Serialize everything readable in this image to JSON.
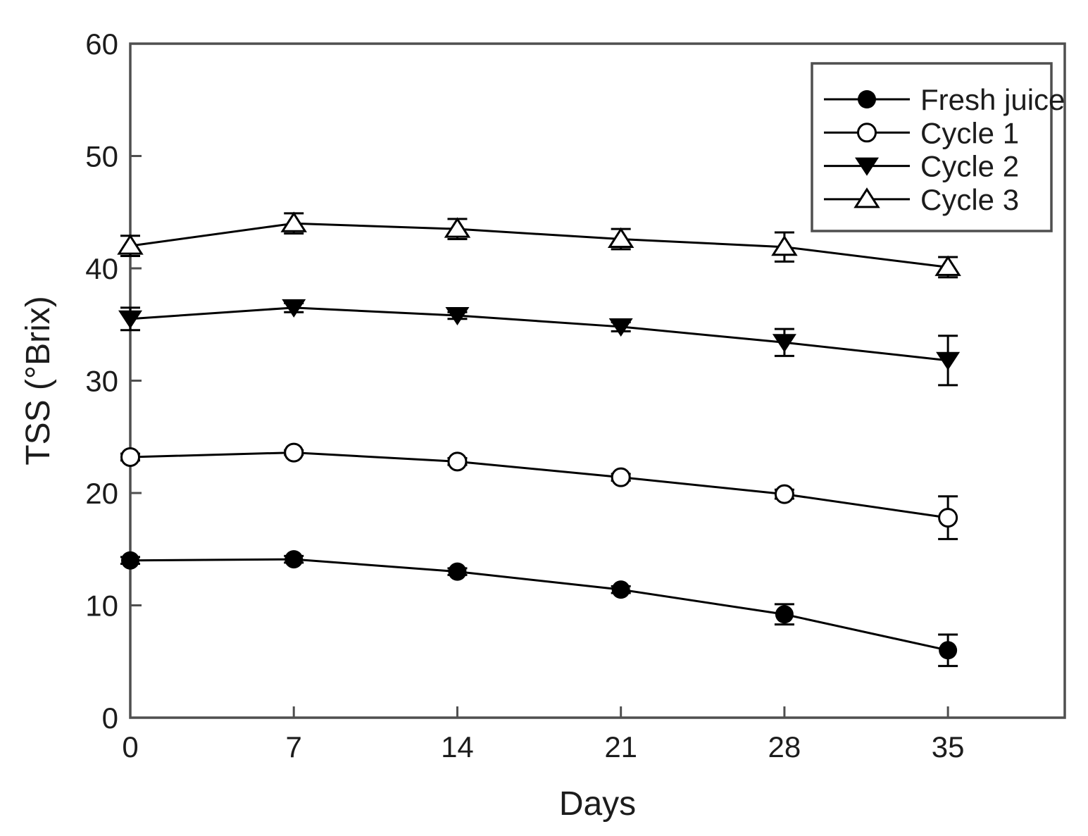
{
  "figure": {
    "background": "#ffffff",
    "description": "Line chart of TSS (°Brix) versus storage days for fresh juice and three concentration cycles, with error bars"
  },
  "chart_data": {
    "type": "line",
    "title": "",
    "xlabel": "Days",
    "ylabel": "TSS (°Brix)",
    "x": [
      0,
      7,
      14,
      21,
      28,
      35
    ],
    "xlim": [
      0,
      40
    ],
    "ylim": [
      0,
      60
    ],
    "x_ticks": [
      0,
      7,
      14,
      21,
      28,
      35
    ],
    "y_ticks": [
      0,
      10,
      20,
      30,
      40,
      50,
      60
    ],
    "grid": false,
    "legend_position": "top-right",
    "series": [
      {
        "name": "Fresh juice",
        "marker": "circle-filled",
        "values": [
          14.0,
          14.1,
          13.0,
          11.4,
          9.2,
          6.0
        ],
        "errors": [
          0.3,
          0.3,
          0.3,
          0.3,
          0.9,
          1.4
        ]
      },
      {
        "name": "Cycle 1",
        "marker": "circle-open",
        "values": [
          23.2,
          23.6,
          22.8,
          21.4,
          19.9,
          17.8
        ],
        "errors": [
          0.3,
          0.2,
          0.3,
          0.3,
          0.4,
          1.9
        ]
      },
      {
        "name": "Cycle 2",
        "marker": "triangle-down-filled",
        "values": [
          35.5,
          36.5,
          35.8,
          34.8,
          33.4,
          31.8
        ],
        "errors": [
          1.0,
          0.4,
          0.3,
          0.4,
          1.2,
          2.2
        ]
      },
      {
        "name": "Cycle 3",
        "marker": "triangle-up-open",
        "values": [
          42.0,
          44.0,
          43.5,
          42.6,
          41.9,
          40.1
        ],
        "errors": [
          0.9,
          0.9,
          0.9,
          0.9,
          1.3,
          0.9
        ]
      }
    ],
    "colors": {
      "data": "#000000",
      "frame": "#4f4f4f",
      "text": "#1c1c1c",
      "marker_fill_open": "#ffffff"
    }
  }
}
